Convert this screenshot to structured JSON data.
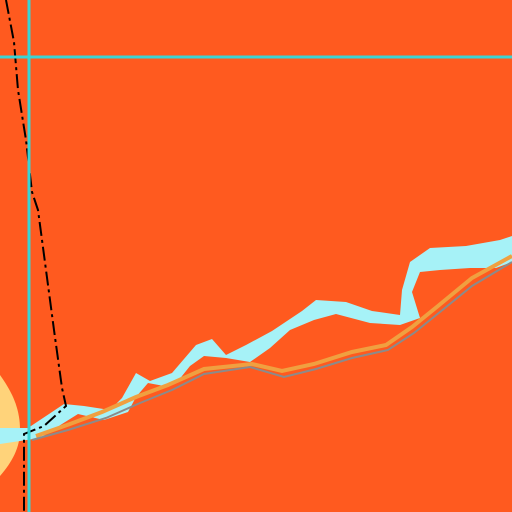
{
  "map": {
    "colors": {
      "land": "#ff5a1f",
      "water": "#a6f2f7",
      "grid_line": "#3ad4d4",
      "riverbank_sand": "#ffd37a",
      "trail": "#f0a040",
      "road": "#8b8b8b",
      "boundary": "#000000"
    },
    "layers": [
      "land",
      "river",
      "sandbank",
      "trail",
      "road",
      "boundary",
      "grid-lines"
    ]
  }
}
